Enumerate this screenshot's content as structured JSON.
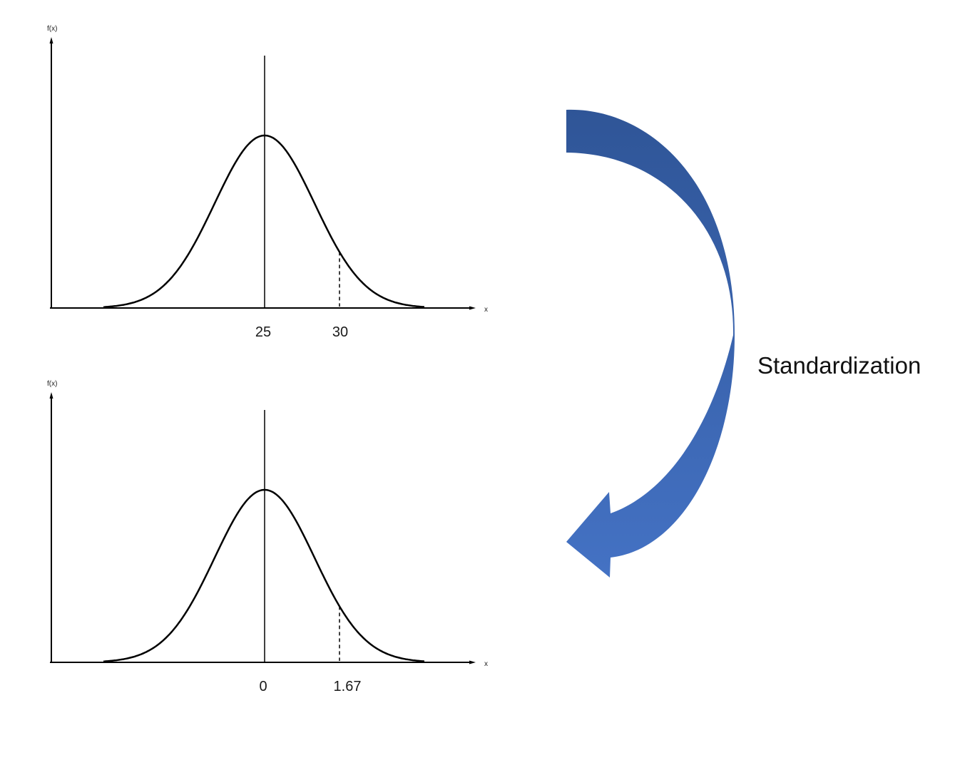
{
  "top_plot": {
    "ylabel": "f(x)",
    "xlabel": "x",
    "tick_mean": "25",
    "tick_value": "30"
  },
  "bottom_plot": {
    "ylabel": "f(x)",
    "xlabel": "x",
    "tick_mean": "0",
    "tick_value": "1.67"
  },
  "transformation": {
    "label": "Standardization",
    "arrow_color_top": "#2f5597",
    "arrow_color_bottom": "#4472c4"
  }
}
